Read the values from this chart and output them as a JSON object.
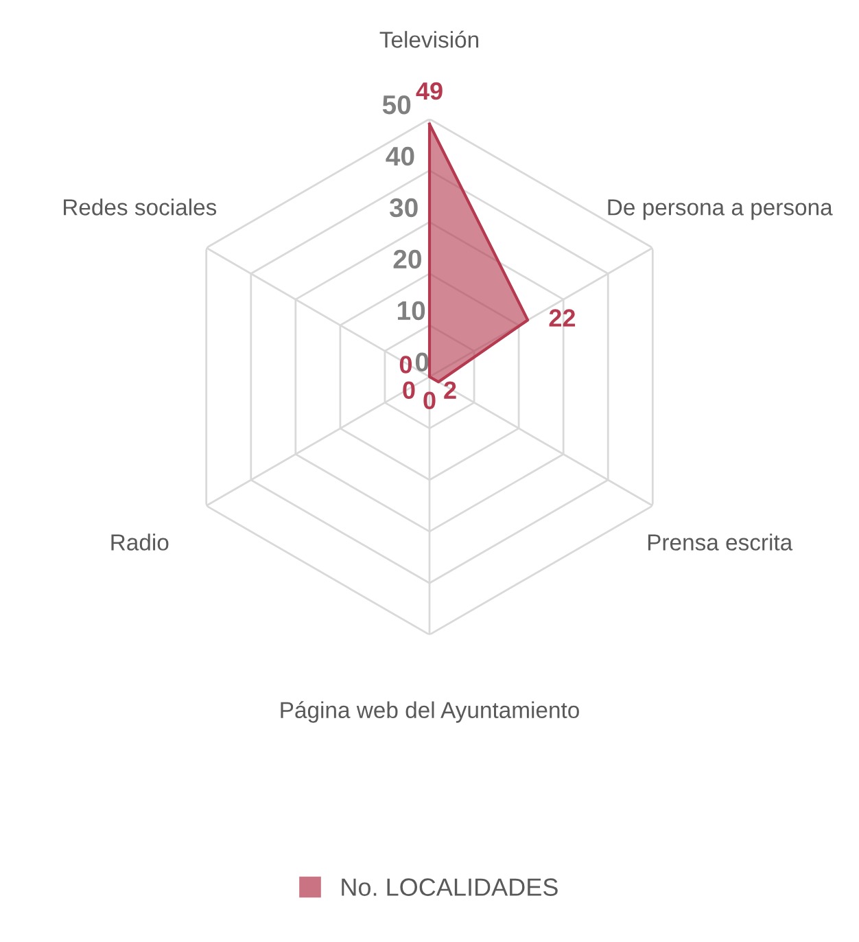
{
  "chart_data": {
    "type": "radar",
    "categories": [
      "Televisión",
      "De persona a persona",
      "Prensa escrita",
      "Página web del Ayuntamiento",
      "Radio",
      "Redes sociales"
    ],
    "series": [
      {
        "name": "No. LOCALIDADES",
        "color": "#b5394f",
        "values": [
          49,
          22,
          2,
          0,
          0,
          0
        ]
      }
    ],
    "ylim": [
      0,
      50
    ],
    "yticks": [
      0,
      10,
      20,
      30,
      40,
      50
    ],
    "data_labels": true,
    "legend": "bottom",
    "grid": true
  }
}
